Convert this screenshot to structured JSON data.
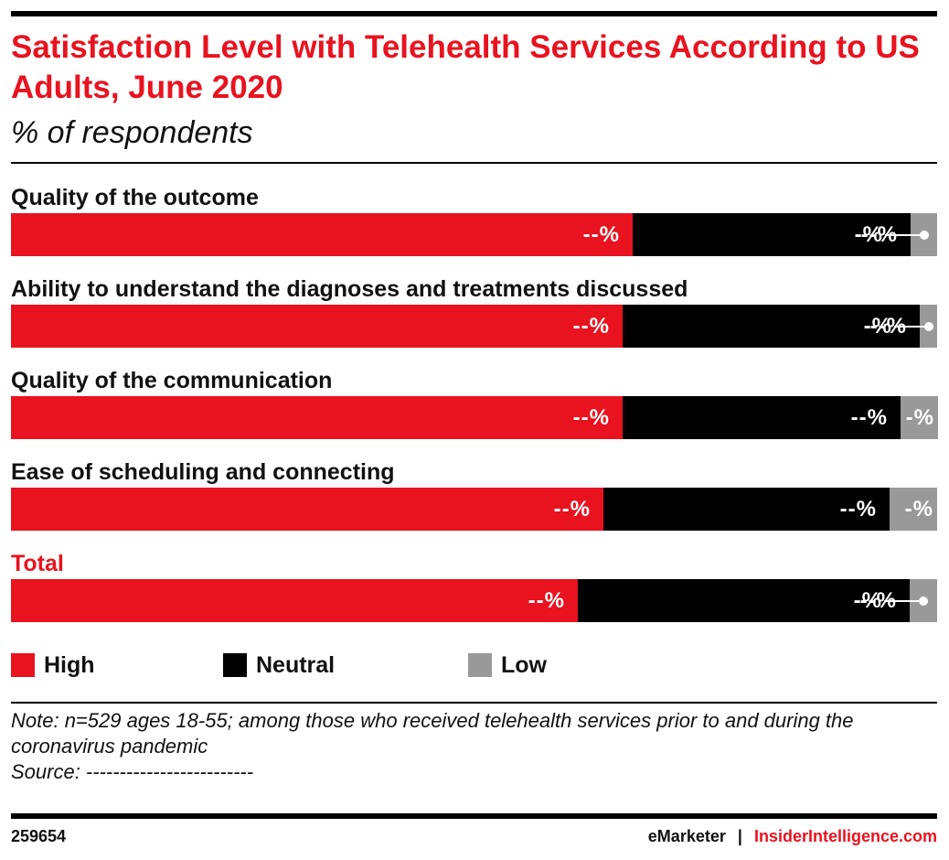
{
  "header": {
    "title": "Satisfaction Level with Telehealth Services According to US Adults, June 2020",
    "subtitle": "% of respondents"
  },
  "chart_data": {
    "type": "bar",
    "orientation": "horizontal",
    "stacked": true,
    "title": "Satisfaction Level with Telehealth Services According to US Adults, June 2020",
    "subtitle": "% of respondents",
    "categories": [
      "Quality of the outcome",
      "Ability to understand the diagnoses and treatments discussed",
      "Quality of the communication",
      "Ease of scheduling and connecting",
      "Total"
    ],
    "series": [
      {
        "name": "High",
        "values": [
          67.1,
          66.0,
          66.0,
          64.0,
          61.2
        ],
        "labels": [
          "--%",
          "--%",
          "--%",
          "--%",
          "--%"
        ]
      },
      {
        "name": "Neutral",
        "values": [
          30.0,
          32.1,
          30.0,
          30.9,
          35.8
        ],
        "labels": [
          "--%",
          "--%",
          "--%",
          "--%",
          "--%"
        ]
      },
      {
        "name": "Low",
        "values": [
          2.9,
          1.9,
          4.0,
          5.1,
          3.0
        ],
        "labels": [
          "-%",
          "-%",
          "-%",
          "-%",
          "-%"
        ]
      }
    ],
    "colors": {
      "High": "#e8131f",
      "Neutral": "#000000",
      "Low": "#999999"
    },
    "xlim": [
      0,
      100
    ],
    "legend": "bottom",
    "grid": false
  },
  "legend": {
    "items": [
      {
        "label": "High",
        "color": "#e8131f"
      },
      {
        "label": "Neutral",
        "color": "#000000"
      },
      {
        "label": "Low",
        "color": "#999999"
      }
    ]
  },
  "note": {
    "line1": "Note: n=529 ages 18-55; among those who received telehealth services prior to and during the coronavirus pandemic",
    "source": "Source: -------------------------"
  },
  "footer": {
    "chart_id": "259654",
    "brand_left": "eMarketer",
    "separator": "|",
    "brand_right": "InsiderIntelligence.com"
  }
}
